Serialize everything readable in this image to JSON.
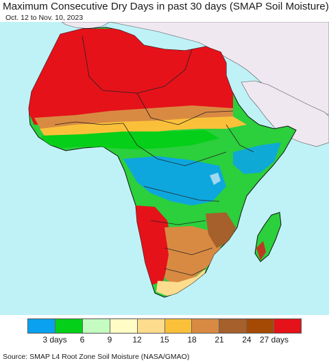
{
  "title": "Maximum Consecutive Dry Days in past 30 days (SMAP Soil Moisture)",
  "subtitle": "Oct. 12 to Nov. 10, 2023",
  "source": "Source: SMAP L4 Root Zone Soil Moisture (NASA/GMAO)",
  "map": {
    "ocean_color": "#bff2f7",
    "no_data_land_color": "#efe8f0",
    "border_color": "#222222"
  },
  "legend": {
    "colors": [
      "#0aa2f0",
      "#05cf18",
      "#c4fcc2",
      "#fffcc6",
      "#fedc8e",
      "#fbc03a",
      "#d98a42",
      "#a5602c",
      "#a54a05",
      "#e5121a"
    ],
    "tick_labels": [
      "3 days",
      "6",
      "9",
      "12",
      "15",
      "18",
      "21",
      "24",
      "27 days"
    ]
  }
}
